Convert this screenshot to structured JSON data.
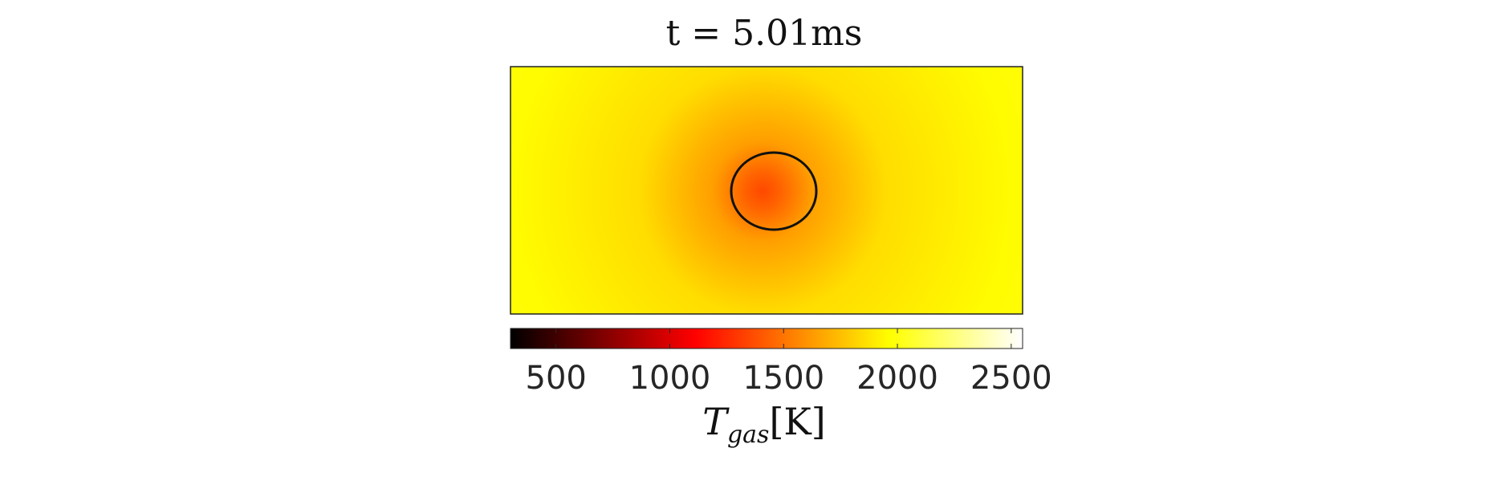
{
  "chart_data": {
    "type": "heatmap",
    "title": "t = 5.01ms",
    "colormap": "hot",
    "ambient_temperature": 2000,
    "hotspot_temperature": 1350,
    "colorbar": {
      "range": [
        300,
        2550
      ],
      "ticks": [
        500,
        1000,
        1500,
        2000,
        2500
      ],
      "tick_labels": [
        "500",
        "1000",
        "1500",
        "2000",
        "2500"
      ],
      "label_main": "T",
      "label_sub": "gas",
      "label_unit": "[K]"
    },
    "overlay": {
      "shape": "ellipse",
      "stroke_color": "#111111"
    },
    "xaxis_ticks_visible": false,
    "yaxis_ticks_visible": false
  },
  "colors": {
    "frame": "#222222",
    "background": "#ffffff"
  }
}
